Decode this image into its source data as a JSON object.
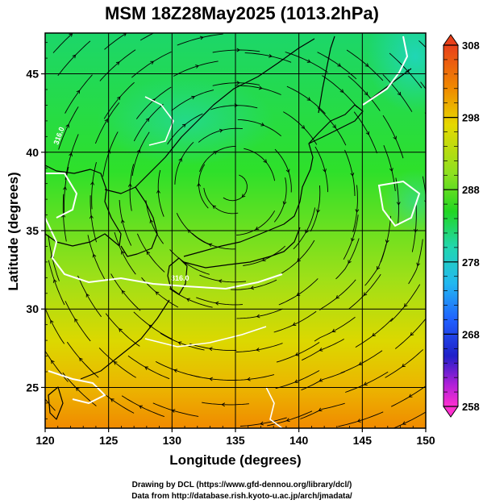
{
  "title": "MSM 18Z28May2025 (1013.2hPa)",
  "xlabel": "Longitude (degrees)",
  "ylabel": "Latitude  (degrees)",
  "credits": [
    "Drawing by DCL (https://www.gfd-dennou.org/library/dcl/)",
    "Data from http://database.rish.kyoto-u.ac.jp/arch/jmadata/"
  ],
  "contour_labels": [
    "316.0",
    "316.0"
  ],
  "chart_data": {
    "type": "heatmap",
    "field": "temperature with streamlines",
    "xlim": [
      120,
      150
    ],
    "ylim": [
      22.4,
      47.6
    ],
    "x_ticks": [
      120,
      125,
      130,
      135,
      140,
      145,
      150
    ],
    "y_ticks": [
      25,
      30,
      35,
      40,
      45
    ],
    "grid": true,
    "colorbar": {
      "min": 258,
      "max": 308,
      "tick_values": [
        258,
        268,
        278,
        288,
        298,
        308
      ],
      "placement": "right"
    }
  },
  "colors": {
    "orange": "#f0a400",
    "yellow": "#e6d800",
    "green": "#22d622",
    "cyan": "#22d6c8",
    "blue": "#0070ff",
    "magenta": "#ff00c8"
  }
}
